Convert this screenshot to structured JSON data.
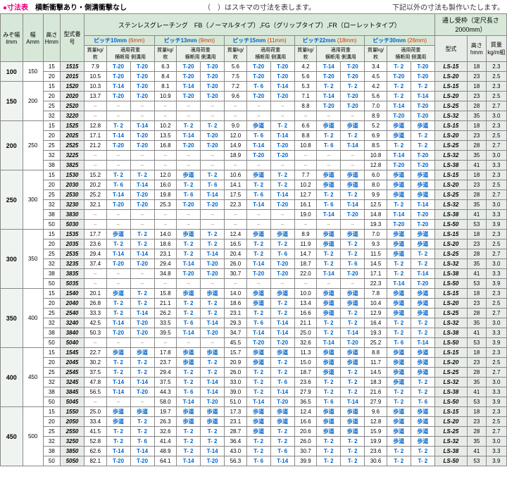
{
  "header": {
    "left_pink": "●寸法表",
    "left_bold": "横断衝撃あり・側溝衝撃なし",
    "mid": "（　）はスキマの寸法を表します。",
    "right": "下記以外の寸法も製作いたします。"
  },
  "top": {
    "t1": "ステンレスグレーチング　FB（ノーマルタイプ）,FG（グリップタイプ）,FR（ローレットタイプ）",
    "t2": "通し受枠（定尺長さ2000mm）"
  },
  "cols": {
    "c1": "みぞ幅ℓmm",
    "c2": "幅Amm",
    "c3": "高さHmm",
    "c4": "型式番号",
    "ph": "ピッチ",
    "pv": [
      "10",
      "13",
      "15",
      "22",
      "30"
    ],
    "pu": [
      "6",
      "9",
      "11",
      "18",
      "26"
    ],
    "sub1": "質量kg/枚",
    "sub2": "適用荷重",
    "sub3": "横断用",
    "sub4": "側溝用",
    "c5": "型式",
    "c6": "高さhmm",
    "c7": "質量kg/m組"
  },
  "groups": [
    {
      "mz": "100",
      "a": "150",
      "rows": [
        {
          "h": "15",
          "m": "1515",
          "d": [
            "7.9",
            "T-20",
            "T-20",
            "6.3",
            "T-20",
            "T-20",
            "5.6",
            "T-20",
            "T-20",
            "4.2",
            "T-14",
            "T-20",
            "3.4",
            "T- 2",
            "T-20"
          ],
          "ls": "LS-15",
          "hh": "18",
          "kg": "2.3"
        },
        {
          "h": "20",
          "m": "2015",
          "d": [
            "10.5",
            "T-20",
            "T-20",
            "8.4",
            "T-20",
            "T-20",
            "7.5",
            "T-20",
            "T-20",
            "5.6",
            "T-20",
            "T-20",
            "4.5",
            "T-20",
            "T-20"
          ],
          "ls": "LS-20",
          "hh": "23",
          "kg": "2.5"
        }
      ]
    },
    {
      "mz": "150",
      "a": "200",
      "rows": [
        {
          "h": "15",
          "m": "1520",
          "d": [
            "10.3",
            "T-14",
            "T-20",
            "8.1",
            "T-14",
            "T-20",
            "7.2",
            "T- 6",
            "T-14",
            "5.3",
            "T- 2",
            "T- 2",
            "4.2",
            "T- 2",
            "T- 2"
          ],
          "ls": "LS-15",
          "hh": "18",
          "kg": "2.3"
        },
        {
          "h": "20",
          "m": "2020",
          "d": [
            "13.7",
            "T-20",
            "T-20",
            "10.9",
            "T-20",
            "T-20",
            "9.6",
            "T-20",
            "T-20",
            "7.1",
            "T-14",
            "T-20",
            "5.6",
            "T- 2",
            "T-14"
          ],
          "ls": "LS-20",
          "hh": "23",
          "kg": "2.5"
        },
        {
          "h": "25",
          "m": "2520",
          "d": [
            "–",
            "–",
            "–",
            "–",
            "–",
            "–",
            "–",
            "–",
            "–",
            "8.8",
            "T-20",
            "T-20",
            "7.0",
            "T-14",
            "T-20"
          ],
          "ls": "LS-25",
          "hh": "28",
          "kg": "2.7"
        },
        {
          "h": "32",
          "m": "3220",
          "d": [
            "–",
            "–",
            "–",
            "–",
            "–",
            "–",
            "–",
            "–",
            "–",
            "–",
            "–",
            "–",
            "8.9",
            "T-20",
            "T-20"
          ],
          "ls": "LS-32",
          "hh": "35",
          "kg": "3.0"
        }
      ]
    },
    {
      "mz": "200",
      "a": "250",
      "rows": [
        {
          "h": "15",
          "m": "1525",
          "d": [
            "12.8",
            "T- 2",
            "T-14",
            "10.2",
            "T- 2",
            "T- 2",
            "9.0",
            "歩道",
            "T- 2",
            "6.6",
            "歩道",
            "歩道",
            "5.2",
            "歩道",
            "歩道"
          ],
          "ls": "LS-15",
          "hh": "18",
          "kg": "2.3"
        },
        {
          "h": "20",
          "m": "2025",
          "d": [
            "17.1",
            "T-14",
            "T-20",
            "13.5",
            "T-14",
            "T-20",
            "12.0",
            "T- 6",
            "T-14",
            "8.8",
            "T- 2",
            "T- 2",
            "6.9",
            "歩道",
            "T- 2"
          ],
          "ls": "LS-20",
          "hh": "23",
          "kg": "2.5"
        },
        {
          "h": "25",
          "m": "2525",
          "d": [
            "21.2",
            "T-20",
            "T-20",
            "16.8",
            "T-20",
            "T-20",
            "14.9",
            "T-14",
            "T-20",
            "10.8",
            "T- 6",
            "T-14",
            "8.5",
            "T- 2",
            "T- 2"
          ],
          "ls": "LS-25",
          "hh": "28",
          "kg": "2.7"
        },
        {
          "h": "32",
          "m": "3225",
          "d": [
            "–",
            "–",
            "–",
            "–",
            "–",
            "–",
            "18.9",
            "T-20",
            "T-20",
            "–",
            "–",
            "–",
            "10.8",
            "T-14",
            "T-20"
          ],
          "ls": "LS-32",
          "hh": "35",
          "kg": "3.0"
        },
        {
          "h": "38",
          "m": "3825",
          "d": [
            "–",
            "–",
            "–",
            "–",
            "–",
            "–",
            "–",
            "–",
            "–",
            "–",
            "–",
            "–",
            "12.8",
            "T-20",
            "T-20"
          ],
          "ls": "LS-38",
          "hh": "41",
          "kg": "3.3"
        }
      ]
    },
    {
      "mz": "250",
      "a": "300",
      "rows": [
        {
          "h": "15",
          "m": "1530",
          "d": [
            "15.2",
            "T- 2",
            "T- 2",
            "12.0",
            "歩道",
            "T- 2",
            "10.6",
            "歩道",
            "T- 2",
            "7.7",
            "歩道",
            "歩道",
            "6.0",
            "歩道",
            "歩道"
          ],
          "ls": "LS-15",
          "hh": "18",
          "kg": "2.3"
        },
        {
          "h": "20",
          "m": "2030",
          "d": [
            "20.2",
            "T- 6",
            "T-14",
            "16.0",
            "T- 2",
            "T- 6",
            "14.1",
            "T- 2",
            "T- 2",
            "10.2",
            "歩道",
            "歩道",
            "8.0",
            "歩道",
            "歩道"
          ],
          "ls": "LS-20",
          "hh": "23",
          "kg": "2.5"
        },
        {
          "h": "25",
          "m": "2530",
          "d": [
            "25.2",
            "T-14",
            "T-20",
            "19.8",
            "T- 6",
            "T-14",
            "17.5",
            "T- 6",
            "T-14",
            "12.7",
            "T- 2",
            "T- 2",
            "9.9",
            "歩道",
            "歩道"
          ],
          "ls": "LS-25",
          "hh": "28",
          "kg": "2.7"
        },
        {
          "h": "32",
          "m": "3230",
          "d": [
            "32.1",
            "T-20",
            "T-20",
            "25.3",
            "T-20",
            "T-20",
            "22.3",
            "T-14",
            "T-20",
            "16.1",
            "T- 6",
            "T-14",
            "12.5",
            "T- 2",
            "T-14"
          ],
          "ls": "LS-32",
          "hh": "35",
          "kg": "3.0"
        },
        {
          "h": "38",
          "m": "3830",
          "d": [
            "–",
            "–",
            "–",
            "–",
            "–",
            "–",
            "–",
            "–",
            "–",
            "19.0",
            "T-14",
            "T-20",
            "14.8",
            "T-14",
            "T-20"
          ],
          "ls": "LS-38",
          "hh": "41",
          "kg": "3.3"
        },
        {
          "h": "50",
          "m": "5030",
          "d": [
            "–",
            "–",
            "–",
            "–",
            "–",
            "–",
            "–",
            "–",
            "–",
            "–",
            "–",
            "–",
            "19.3",
            "T-20",
            "T-20"
          ],
          "ls": "LS-50",
          "hh": "53",
          "kg": "3.9"
        }
      ]
    },
    {
      "mz": "300",
      "a": "350",
      "rows": [
        {
          "h": "15",
          "m": "1535",
          "d": [
            "17.7",
            "歩道",
            "T- 2",
            "14.0",
            "歩道",
            "T- 2",
            "12.4",
            "歩道",
            "歩道",
            "8.9",
            "歩道",
            "歩道",
            "7.0",
            "歩道",
            "歩道"
          ],
          "ls": "LS-15",
          "hh": "18",
          "kg": "2.3"
        },
        {
          "h": "20",
          "m": "2035",
          "d": [
            "23.6",
            "T- 2",
            "T- 2",
            "18.6",
            "T- 2",
            "T- 2",
            "16.5",
            "T- 2",
            "T- 2",
            "11.9",
            "歩道",
            "T- 2",
            "9.3",
            "歩道",
            "歩道"
          ],
          "ls": "LS-20",
          "hh": "23",
          "kg": "2.5"
        },
        {
          "h": "25",
          "m": "2535",
          "d": [
            "29.4",
            "T-14",
            "T-14",
            "23.1",
            "T- 2",
            "T-14",
            "20.4",
            "T- 2",
            "T- 6",
            "14.7",
            "T- 2",
            "T- 2",
            "11.5",
            "歩道",
            "T- 2"
          ],
          "ls": "LS-25",
          "hh": "28",
          "kg": "2.7"
        },
        {
          "h": "32",
          "m": "3235",
          "d": [
            "37.4",
            "T-20",
            "T-20",
            "29.4",
            "T-14",
            "T-20",
            "26.0",
            "T-14",
            "T-20",
            "18.7",
            "T- 2",
            "T- 6",
            "14.5",
            "T- 2",
            "T- 2"
          ],
          "ls": "LS-32",
          "hh": "35",
          "kg": "3.0"
        },
        {
          "h": "38",
          "m": "3835",
          "d": [
            "–",
            "–",
            "–",
            "34.8",
            "T-20",
            "T-20",
            "30.7",
            "T-20",
            "T-20",
            "22.0",
            "T-14",
            "T-20",
            "17.1",
            "T- 2",
            "T-14"
          ],
          "ls": "LS-38",
          "hh": "41",
          "kg": "3.3"
        },
        {
          "h": "50",
          "m": "5035",
          "d": [
            "–",
            "–",
            "–",
            "–",
            "–",
            "–",
            "–",
            "–",
            "–",
            "–",
            "–",
            "–",
            "22.3",
            "T-14",
            "T-20"
          ],
          "ls": "LS-50",
          "hh": "53",
          "kg": "3.9"
        }
      ]
    },
    {
      "mz": "350",
      "a": "400",
      "rows": [
        {
          "h": "15",
          "m": "1540",
          "d": [
            "20.1",
            "歩道",
            "T- 2",
            "15.8",
            "歩道",
            "歩道",
            "14.0",
            "歩道",
            "歩道",
            "10.0",
            "歩道",
            "歩道",
            "7.8",
            "歩道",
            "歩道"
          ],
          "ls": "LS-15",
          "hh": "18",
          "kg": "2.3"
        },
        {
          "h": "20",
          "m": "2040",
          "d": [
            "26.8",
            "T- 2",
            "T- 2",
            "21.1",
            "T- 2",
            "T- 2",
            "18.6",
            "歩道",
            "T- 2",
            "13.4",
            "歩道",
            "歩道",
            "10.4",
            "歩道",
            "歩道"
          ],
          "ls": "LS-20",
          "hh": "23",
          "kg": "2.5"
        },
        {
          "h": "25",
          "m": "2540",
          "d": [
            "33.3",
            "T- 2",
            "T-14",
            "26.2",
            "T- 2",
            "T- 2",
            "23.1",
            "T- 2",
            "T- 2",
            "16.6",
            "歩道",
            "T- 2",
            "12.9",
            "歩道",
            "歩道"
          ],
          "ls": "LS-25",
          "hh": "28",
          "kg": "2.7"
        },
        {
          "h": "32",
          "m": "3240",
          "d": [
            "42.5",
            "T-14",
            "T-20",
            "33.5",
            "T- 6",
            "T-14",
            "29.3",
            "T- 6",
            "T-14",
            "21.1",
            "T- 2",
            "T- 2",
            "16.4",
            "T- 2",
            "T- 2"
          ],
          "ls": "LS-32",
          "hh": "35",
          "kg": "3.0"
        },
        {
          "h": "38",
          "m": "3840",
          "d": [
            "50.3",
            "T-20",
            "T-20",
            "39.5",
            "T-14",
            "T-20",
            "34.7",
            "T-14",
            "T-14",
            "25.0",
            "T- 2",
            "T-14",
            "19.3",
            "T- 2",
            "T- 2"
          ],
          "ls": "LS-38",
          "hh": "41",
          "kg": "3.3"
        },
        {
          "h": "50",
          "m": "5040",
          "d": [
            "–",
            "–",
            "–",
            "–",
            "–",
            "–",
            "45.5",
            "T-20",
            "T-20",
            "32.6",
            "T-14",
            "T-20",
            "25.2",
            "T- 6",
            "T-14"
          ],
          "ls": "LS-50",
          "hh": "53",
          "kg": "3.9"
        }
      ]
    },
    {
      "mz": "400",
      "a": "450",
      "rows": [
        {
          "h": "15",
          "m": "1545",
          "d": [
            "22.7",
            "歩道",
            "歩道",
            "17.8",
            "歩道",
            "歩道",
            "15.7",
            "歩道",
            "歩道",
            "11.3",
            "歩道",
            "歩道",
            "8.8",
            "歩道",
            "歩道"
          ],
          "ls": "LS-15",
          "hh": "18",
          "kg": "2.3"
        },
        {
          "h": "20",
          "m": "2045",
          "d": [
            "30.2",
            "T- 2",
            "T- 2",
            "23.7",
            "歩道",
            "T- 2",
            "20.9",
            "歩道",
            "T- 2",
            "15.0",
            "歩道",
            "歩道",
            "11.7",
            "歩道",
            "歩道"
          ],
          "ls": "LS-20",
          "hh": "23",
          "kg": "2.5"
        },
        {
          "h": "25",
          "m": "2545",
          "d": [
            "37.5",
            "T- 2",
            "T- 2",
            "29.4",
            "T- 2",
            "T- 2",
            "26.0",
            "T- 2",
            "T- 2",
            "18.7",
            "歩道",
            "T- 2",
            "14.5",
            "歩道",
            "歩道"
          ],
          "ls": "LS-25",
          "hh": "28",
          "kg": "2.7"
        },
        {
          "h": "32",
          "m": "3245",
          "d": [
            "47.8",
            "T-14",
            "T-14",
            "37.5",
            "T- 2",
            "T-14",
            "33.0",
            "T- 2",
            "T- 6",
            "23.6",
            "T- 2",
            "T- 2",
            "18.3",
            "歩道",
            "T- 2"
          ],
          "ls": "LS-32",
          "hh": "35",
          "kg": "3.0"
        },
        {
          "h": "38",
          "m": "3845",
          "d": [
            "56.5",
            "T-14",
            "T-20",
            "44.3",
            "T- 6",
            "T-14",
            "39.0",
            "T- 2",
            "T-14",
            "27.9",
            "T- 2",
            "T- 2",
            "21.6",
            "T- 2",
            "T- 2"
          ],
          "ls": "LS-38",
          "hh": "41",
          "kg": "3.3"
        },
        {
          "h": "50",
          "m": "5045",
          "d": [
            "–",
            "–",
            "–",
            "58.0",
            "T-14",
            "T-20",
            "51.0",
            "T-14",
            "T-20",
            "36.5",
            "T- 6",
            "T-14",
            "27.9",
            "T- 2",
            "T- 6"
          ],
          "ls": "LS-50",
          "hh": "53",
          "kg": "3.9"
        }
      ]
    },
    {
      "mz": "450",
      "a": "500",
      "rows": [
        {
          "h": "15",
          "m": "1550",
          "d": [
            "25.0",
            "歩道",
            "歩道",
            "19.7",
            "歩道",
            "歩道",
            "17.3",
            "歩道",
            "歩道",
            "12.4",
            "歩道",
            "歩道",
            "9.6",
            "歩道",
            "歩道"
          ],
          "ls": "LS-15",
          "hh": "18",
          "kg": "2.3"
        },
        {
          "h": "20",
          "m": "2050",
          "d": [
            "33.4",
            "歩道",
            "T- 2",
            "26.3",
            "歩道",
            "歩道",
            "23.1",
            "歩道",
            "歩道",
            "16.6",
            "歩道",
            "歩道",
            "12.8",
            "歩道",
            "歩道"
          ],
          "ls": "LS-20",
          "hh": "23",
          "kg": "2.5"
        },
        {
          "h": "25",
          "m": "2550",
          "d": [
            "41.5",
            "T- 2",
            "T- 2",
            "32.6",
            "T- 2",
            "T- 2",
            "28.7",
            "歩道",
            "T- 2",
            "20.6",
            "歩道",
            "歩道",
            "15.9",
            "歩道",
            "歩道"
          ],
          "ls": "LS-25",
          "hh": "28",
          "kg": "2.7"
        },
        {
          "h": "32",
          "m": "3250",
          "d": [
            "52.8",
            "T- 2",
            "T- 6",
            "41.4",
            "T- 2",
            "T- 2",
            "36.4",
            "T- 2",
            "T- 2",
            "26.0",
            "T- 2",
            "T- 2",
            "19.9",
            "歩道",
            "歩道"
          ],
          "ls": "LS-32",
          "hh": "35",
          "kg": "3.0"
        },
        {
          "h": "38",
          "m": "3850",
          "d": [
            "62.6",
            "T-14",
            "T-14",
            "48.9",
            "T- 2",
            "T-14",
            "43.0",
            "T- 2",
            "T- 6",
            "30.7",
            "T- 2",
            "T- 2",
            "23.6",
            "T- 2",
            "T- 2"
          ],
          "ls": "LS-38",
          "hh": "41",
          "kg": "3.3"
        },
        {
          "h": "50",
          "m": "5050",
          "d": [
            "82.1",
            "T-20",
            "T-20",
            "64.1",
            "T-14",
            "T-20",
            "56.3",
            "T- 6",
            "T-14",
            "39.9",
            "T- 2",
            "T- 2",
            "30.6",
            "T- 2",
            "T- 2"
          ],
          "ls": "LS-50",
          "hh": "53",
          "kg": "3.9"
        }
      ]
    }
  ]
}
